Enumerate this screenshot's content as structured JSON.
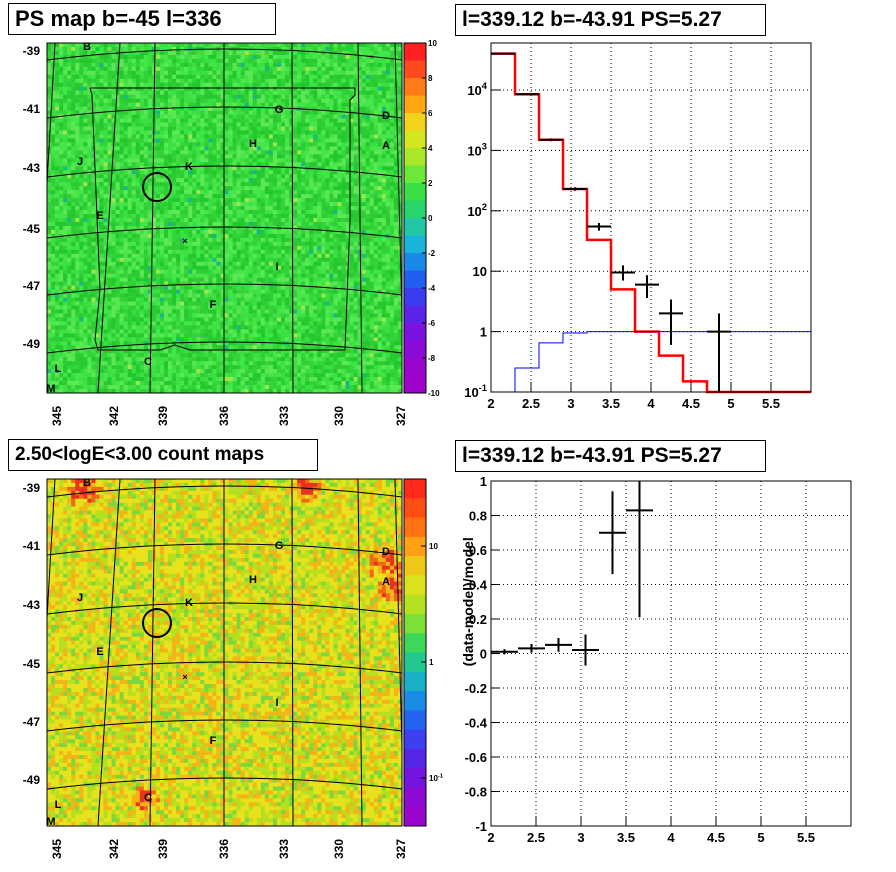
{
  "panels": {
    "ps_map": {
      "title": "PS map b=-45 l=336",
      "lat_ticks": [
        "-39",
        "-41",
        "-43",
        "-45",
        "-47",
        "-49"
      ],
      "lon_ticks": [
        "345",
        "342",
        "339",
        "336",
        "333",
        "330",
        "327"
      ],
      "colorbar_ticks": [
        "10",
        "8",
        "6",
        "4",
        "2",
        "0",
        "-2",
        "-4",
        "-6",
        "-8",
        "-10"
      ],
      "source_labels": [
        "B",
        "G",
        "D",
        "A",
        "H",
        "J",
        "K",
        "E",
        "I",
        "F",
        "C",
        "L",
        "M"
      ]
    },
    "count_map": {
      "title": "2.50<logE<3.00 count maps",
      "lat_ticks": [
        "-39",
        "-41",
        "-43",
        "-45",
        "-47",
        "-49"
      ],
      "lon_ticks": [
        "345",
        "342",
        "339",
        "336",
        "333",
        "330",
        "327"
      ],
      "colorbar_ticks": [
        "10",
        "1",
        "10"
      ],
      "colorbar_sup": "-1",
      "source_labels": [
        "B",
        "G",
        "D",
        "A",
        "H",
        "J",
        "K",
        "E",
        "I",
        "F",
        "C",
        "L",
        "M"
      ]
    },
    "spectrum": {
      "title": "l=339.12 b=-43.91 PS=5.27"
    },
    "residual": {
      "title": "l=339.12 b=-43.91 PS=5.27"
    }
  },
  "chart_data": [
    {
      "type": "heatmap",
      "title": "PS map b=-45 l=336",
      "xlabel": "",
      "ylabel": "",
      "x_ticks": [
        345,
        342,
        339,
        336,
        333,
        330,
        327
      ],
      "y_ticks": [
        -39,
        -41,
        -43,
        -45,
        -47,
        -49
      ],
      "zlim": [
        -10,
        10
      ],
      "colorbar_ticks": [
        10,
        8,
        6,
        4,
        2,
        0,
        -2,
        -4,
        -6,
        -8,
        -10
      ],
      "grid": true,
      "highlight_circle_at": {
        "l": 339.12,
        "b": -43.91
      }
    },
    {
      "type": "bar",
      "title": "l=339.12 b=-43.91 PS=5.27",
      "xlabel": "",
      "ylabel": "",
      "scale_y": "log",
      "xlim": [
        2,
        6
      ],
      "ylim": [
        0.1,
        60000
      ],
      "x_ticks": [
        2,
        2.5,
        3,
        3.5,
        4,
        4.5,
        5,
        5.5
      ],
      "y_ticks": [
        {
          "v": 0.1,
          "t": "10",
          "sup": "-1"
        },
        {
          "v": 1,
          "t": "1"
        },
        {
          "v": 10,
          "t": "10"
        },
        {
          "v": 100,
          "t": "10",
          "sup": "2"
        },
        {
          "v": 1000,
          "t": "10",
          "sup": "3"
        },
        {
          "v": 10000,
          "t": "10",
          "sup": "4"
        }
      ],
      "grid": true,
      "series": [
        {
          "color": "#ff0000",
          "style": "step",
          "bins": [
            2,
            2.3,
            2.6,
            2.9,
            3.2,
            3.5,
            3.8,
            4.1,
            4.4,
            4.7,
            6
          ],
          "values": [
            40000,
            8500,
            1500,
            230,
            33,
            5,
            1,
            0.4,
            0.15,
            0.1
          ]
        },
        {
          "color": "#0000ff",
          "style": "step",
          "bins": [
            2,
            2.3,
            2.6,
            2.9,
            3.2,
            3.5,
            3.8,
            4.1,
            6
          ],
          "values": [
            0.06,
            0.25,
            0.65,
            0.95,
            1.0,
            1.0,
            1.0,
            1.0
          ]
        },
        {
          "color": "#000000",
          "style": "errorbar",
          "points": [
            {
              "x": 2.15,
              "xerr": 0.15,
              "y": 40000,
              "ylo": 39000,
              "yhi": 41000
            },
            {
              "x": 2.45,
              "xerr": 0.15,
              "y": 8500,
              "ylo": 8300,
              "yhi": 8700
            },
            {
              "x": 2.75,
              "xerr": 0.15,
              "y": 1500,
              "ylo": 1420,
              "yhi": 1580
            },
            {
              "x": 3.05,
              "xerr": 0.15,
              "y": 230,
              "ylo": 215,
              "yhi": 245
            },
            {
              "x": 3.35,
              "xerr": 0.15,
              "y": 55,
              "ylo": 47,
              "yhi": 63
            },
            {
              "x": 3.65,
              "xerr": 0.15,
              "y": 9.5,
              "ylo": 7,
              "yhi": 12.5
            },
            {
              "x": 3.95,
              "xerr": 0.15,
              "y": 6,
              "ylo": 3.6,
              "yhi": 8.6
            },
            {
              "x": 4.25,
              "xerr": 0.15,
              "y": 2,
              "ylo": 0.6,
              "yhi": 3.4
            },
            {
              "x": 4.85,
              "xerr": 0.15,
              "y": 1,
              "ylo": 0.1,
              "yhi": 2
            }
          ]
        }
      ]
    },
    {
      "type": "heatmap",
      "title": "2.50<logE<3.00 count maps",
      "xlabel": "",
      "ylabel": "",
      "x_ticks": [
        345,
        342,
        339,
        336,
        333,
        330,
        327
      ],
      "y_ticks": [
        -39,
        -41,
        -43,
        -45,
        -47,
        -49
      ],
      "scale_z": "log",
      "grid": true
    },
    {
      "type": "scatter",
      "title": "l=339.12 b=-43.91 PS=5.27",
      "xlabel": "",
      "ylabel": "(data-model)/model",
      "xlim": [
        2,
        6
      ],
      "ylim": [
        -1,
        1
      ],
      "x_ticks": [
        2,
        2.5,
        3,
        3.5,
        4,
        4.5,
        5,
        5.5
      ],
      "y_ticks": [
        -1,
        -0.8,
        -0.6,
        -0.4,
        -0.2,
        0,
        0.2,
        0.4,
        0.6,
        0.8,
        1
      ],
      "grid": true,
      "series": [
        {
          "color": "#000000",
          "style": "errorbar",
          "points": [
            {
              "x": 2.15,
              "xerr": 0.15,
              "y": 0.01,
              "ylo": -0.005,
              "yhi": 0.025
            },
            {
              "x": 2.45,
              "xerr": 0.15,
              "y": 0.03,
              "ylo": 0.005,
              "yhi": 0.055
            },
            {
              "x": 2.75,
              "xerr": 0.15,
              "y": 0.05,
              "ylo": 0.01,
              "yhi": 0.09
            },
            {
              "x": 3.05,
              "xerr": 0.15,
              "y": 0.02,
              "ylo": -0.07,
              "yhi": 0.11
            },
            {
              "x": 3.35,
              "xerr": 0.15,
              "y": 0.7,
              "ylo": 0.46,
              "yhi": 0.94
            },
            {
              "x": 3.65,
              "xerr": 0.15,
              "y": 0.83,
              "ylo": 0.21,
              "yhi": 1.0
            }
          ]
        }
      ]
    }
  ]
}
